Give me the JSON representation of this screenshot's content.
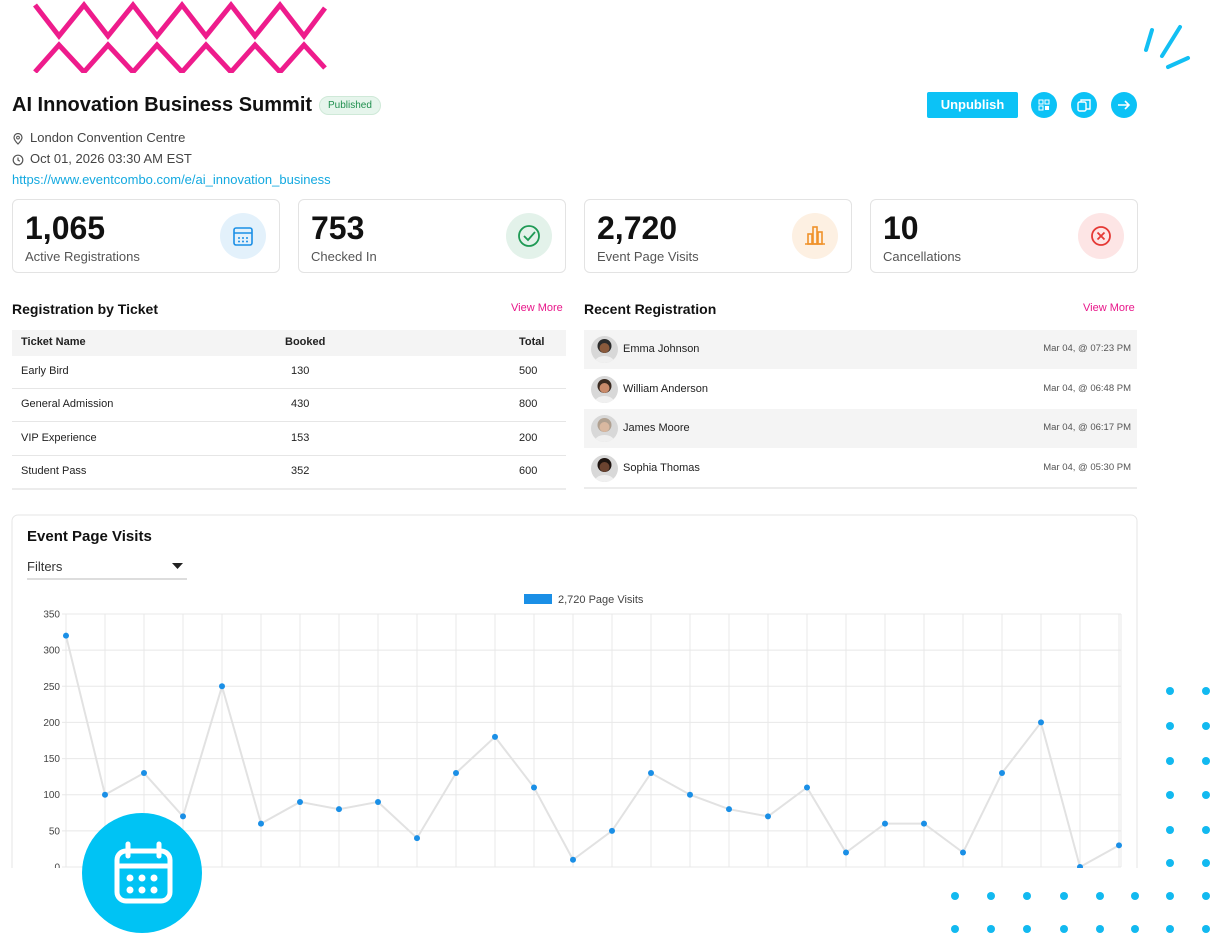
{
  "header": {
    "title": "AI Innovation Business Summit",
    "status": "Published",
    "location": "London Convention Centre",
    "datetime": "Oct 01, 2026 03:30 AM EST",
    "url": "https://www.eventcombo.com/e/ai_innovation_business"
  },
  "actions": {
    "unpublish": "Unpublish"
  },
  "stats": [
    {
      "value": "1,065",
      "label": "Active Registrations"
    },
    {
      "value": "753",
      "label": "Checked In"
    },
    {
      "value": "2,720",
      "label": "Event Page Visits"
    },
    {
      "value": "10",
      "label": "Cancellations"
    }
  ],
  "ticket_table": {
    "title": "Registration by Ticket",
    "link": "View More",
    "columns": [
      "Ticket Name",
      "Booked",
      "Total"
    ],
    "rows": [
      [
        "Early Bird",
        130,
        500
      ],
      [
        "General Admission",
        430,
        800
      ],
      [
        "VIP Experience",
        153,
        200
      ],
      [
        "Student Pass",
        352,
        600
      ]
    ]
  },
  "recent": {
    "title": "Recent Registration",
    "link": "View More",
    "items": [
      {
        "name": "Emma Johnson",
        "time": "Mar 04, @ 07:23 PM"
      },
      {
        "name": "William Anderson",
        "time": "Mar 04, @ 06:48 PM"
      },
      {
        "name": "James Moore",
        "time": "Mar 04, @ 06:17 PM"
      },
      {
        "name": "Sophia Thomas",
        "time": "Mar 04, @ 05:30 PM"
      }
    ]
  },
  "chart_data": {
    "type": "line",
    "title": "Event Page Visits",
    "filter_label": "Filters",
    "series": [
      {
        "name": "2,720 Page Visits",
        "color": "#1a8fe6",
        "line_color": "#e2e2e2",
        "values": [
          320,
          100,
          130,
          70,
          250,
          60,
          90,
          80,
          90,
          40,
          130,
          180,
          110,
          10,
          50,
          130,
          100,
          80,
          70,
          110,
          20,
          60,
          60,
          20,
          130,
          200,
          0,
          30
        ]
      }
    ],
    "ylim": [
      0,
      350
    ],
    "yticks": [
      0,
      50,
      100,
      150,
      200,
      250,
      300,
      350
    ],
    "grid": true
  }
}
